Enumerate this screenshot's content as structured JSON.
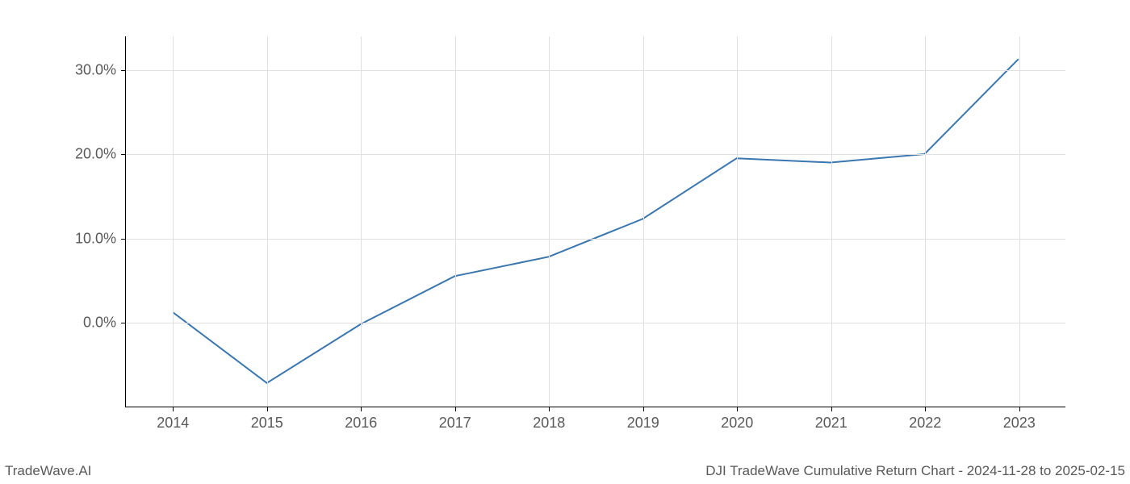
{
  "chart": {
    "type": "line",
    "x_values": [
      2014,
      2015,
      2016,
      2017,
      2018,
      2019,
      2020,
      2021,
      2022,
      2023
    ],
    "y_values": [
      1.2,
      -7.2,
      -0.2,
      5.5,
      7.8,
      12.3,
      19.5,
      19.0,
      20.0,
      31.3
    ],
    "line_color": "#3a76af",
    "line_width": 2,
    "background_color": "#ffffff",
    "grid_color": "#e0e0e0",
    "axis_color": "#000000",
    "tick_label_color": "#595959",
    "tick_label_fontsize": 18,
    "xlim": [
      2013.5,
      2023.5
    ],
    "ylim": [
      -10,
      34
    ],
    "x_ticks": [
      2014,
      2015,
      2016,
      2017,
      2018,
      2019,
      2020,
      2021,
      2022,
      2023
    ],
    "x_tick_labels": [
      "2014",
      "2015",
      "2016",
      "2017",
      "2018",
      "2019",
      "2020",
      "2021",
      "2022",
      "2023"
    ],
    "y_ticks": [
      0,
      10,
      20,
      30
    ],
    "y_tick_labels": [
      "0.0%",
      "10.0%",
      "20.0%",
      "30.0%"
    ]
  },
  "footer": {
    "left": "TradeWave.AI",
    "right": "DJI TradeWave Cumulative Return Chart - 2024-11-28 to 2025-02-15",
    "fontsize": 17,
    "color": "#595959"
  }
}
